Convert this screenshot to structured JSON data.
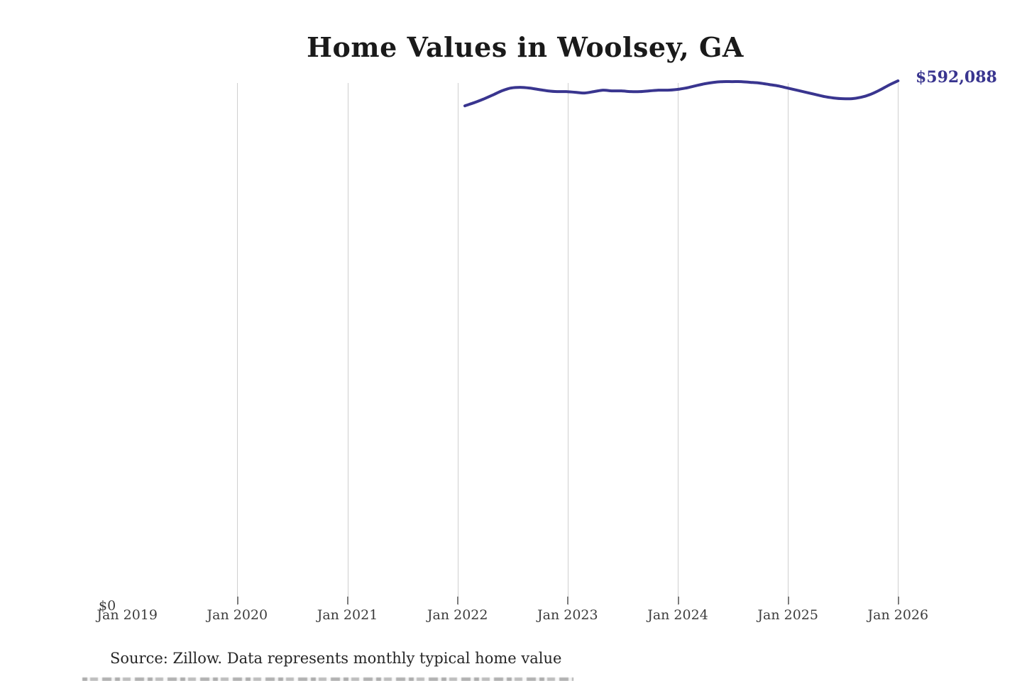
{
  "title": "Home Values in Woolsey, GA",
  "latest_value_label": "$592,088",
  "y_axis": {
    "zero_label": "$0"
  },
  "x_axis": {
    "tick_labels": [
      "Jan 2019",
      "Jan 2020",
      "Jan 2021",
      "Jan 2022",
      "Jan 2023",
      "Jan 2024",
      "Jan 2025",
      "Jan 2026"
    ]
  },
  "source_note": "Source: Zillow. Data represents monthly typical home value",
  "colors": {
    "line": "#39358f",
    "value_label": "#39358f",
    "title_text": "#1a1a1a",
    "axis_text": "#3d3d3d",
    "source_text": "#262626",
    "gridline": "#cfcfcf",
    "tick": "#7a7a7a",
    "background": "#ffffff"
  },
  "chart_data": {
    "type": "line",
    "title": "Home Values in Woolsey, GA",
    "xlabel": "",
    "ylabel": "",
    "x_axis_visible_range": [
      "Jan 2019",
      "Jan 2026"
    ],
    "ylim": [
      0,
      600000
    ],
    "grid": "vertical gridlines at each January, Jan 2020 through Jan 2026; no horizontal gridlines",
    "legend": "none",
    "last_point_annotation": "$592,088",
    "series_name": "Monthly typical home value (USD)",
    "x": [
      "Feb 2022",
      "Mar 2022",
      "Apr 2022",
      "May 2022",
      "Jun 2022",
      "Jul 2022",
      "Aug 2022",
      "Sep 2022",
      "Oct 2022",
      "Nov 2022",
      "Dec 2022",
      "Jan 2023",
      "Feb 2023",
      "Mar 2023",
      "Apr 2023",
      "May 2023",
      "Jun 2023",
      "Jul 2023",
      "Aug 2023",
      "Sep 2023",
      "Oct 2023",
      "Nov 2023",
      "Dec 2023",
      "Jan 2024",
      "Feb 2024",
      "Mar 2024",
      "Apr 2024",
      "May 2024",
      "Jun 2024",
      "Jul 2024",
      "Aug 2024",
      "Sep 2024",
      "Oct 2024",
      "Nov 2024",
      "Dec 2024",
      "Jan 2025",
      "Feb 2025",
      "Mar 2025",
      "Apr 2025",
      "May 2025",
      "Jun 2025",
      "Jul 2025",
      "Aug 2025",
      "Sep 2025",
      "Oct 2025",
      "Nov 2025",
      "Dec 2025",
      "Jan 2026"
    ],
    "values": [
      564000,
      567500,
      571500,
      576000,
      580800,
      584000,
      584800,
      584000,
      582400,
      580800,
      580000,
      580000,
      579200,
      578400,
      580000,
      581600,
      580800,
      580800,
      580000,
      580000,
      580800,
      581600,
      581600,
      582400,
      584000,
      586400,
      588800,
      590400,
      591200,
      591200,
      591200,
      590400,
      589600,
      588000,
      586400,
      584000,
      581600,
      579200,
      576800,
      574400,
      572800,
      572000,
      572000,
      573600,
      576800,
      581600,
      587200,
      592088
    ]
  }
}
